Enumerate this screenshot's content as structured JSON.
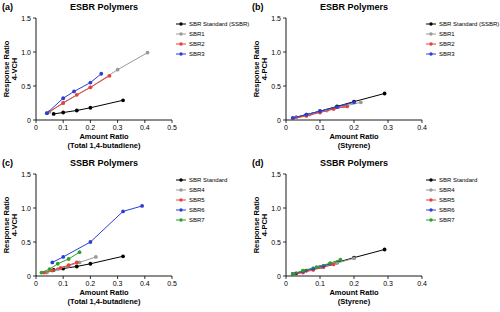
{
  "chart_data": [
    {
      "type": "line",
      "panel_label": "(a)",
      "title": "ESBR Polymers",
      "xlabel": [
        "Amount Ratio",
        "(Total 1,4-butadiene)"
      ],
      "ylabel": [
        "Response Ratio",
        "4-VCH"
      ],
      "xlim": [
        0,
        0.5
      ],
      "ylim": [
        0,
        1.5
      ],
      "xticks": [
        0,
        0.1,
        0.2,
        0.3,
        0.4,
        0.5
      ],
      "yticks": [
        0,
        0.5,
        {
          "value": 1,
          "label": "1.0"
        },
        1.5
      ],
      "grid": false,
      "legend": "right",
      "marker": "circle",
      "series": [
        {
          "name": "SBR Standard (SSBR)",
          "color": "#000000",
          "x": [
            0.065,
            0.1,
            0.15,
            0.2,
            0.32
          ],
          "values": [
            0.09,
            0.11,
            0.14,
            0.18,
            0.29
          ]
        },
        {
          "name": "SBR1",
          "color": "#9a9a9a",
          "x": [
            0.05,
            0.1,
            0.2,
            0.3,
            0.41
          ],
          "values": [
            0.12,
            0.25,
            0.48,
            0.74,
            0.99
          ]
        },
        {
          "name": "SBR2",
          "color": "#e8413a",
          "x": [
            0.04,
            0.1,
            0.15,
            0.2,
            0.27
          ],
          "values": [
            0.1,
            0.25,
            0.37,
            0.48,
            0.65
          ]
        },
        {
          "name": "SBR3",
          "color": "#2b3fd6",
          "x": [
            0.04,
            0.1,
            0.14,
            0.2,
            0.24
          ],
          "values": [
            0.1,
            0.32,
            0.42,
            0.55,
            0.68
          ]
        }
      ]
    },
    {
      "type": "line",
      "panel_label": "(b)",
      "title": "ESBR Polymers",
      "xlabel": [
        "Amount Ratio",
        "(Styrene)"
      ],
      "ylabel": [
        "Response Ratio",
        "4-PCH"
      ],
      "xlim": [
        0,
        0.4
      ],
      "ylim": [
        0,
        1.5
      ],
      "xticks": [
        0,
        0.1,
        0.2,
        0.3,
        0.4
      ],
      "yticks": [
        0,
        0.5,
        {
          "value": 1,
          "label": "1.0"
        },
        1.5
      ],
      "grid": false,
      "legend": "right",
      "marker": "circle",
      "series": [
        {
          "name": "SBR Standard (SSBR)",
          "color": "#000000",
          "x": [
            0.03,
            0.06,
            0.1,
            0.15,
            0.2,
            0.29
          ],
          "values": [
            0.04,
            0.08,
            0.13,
            0.2,
            0.27,
            0.39
          ]
        },
        {
          "name": "SBR1",
          "color": "#9a9a9a",
          "x": [
            0.03,
            0.07,
            0.12,
            0.17,
            0.22
          ],
          "values": [
            0.03,
            0.08,
            0.14,
            0.2,
            0.26
          ]
        },
        {
          "name": "SBR2",
          "color": "#e8413a",
          "x": [
            0.02,
            0.06,
            0.1,
            0.14,
            0.18
          ],
          "values": [
            0.02,
            0.06,
            0.11,
            0.16,
            0.2
          ]
        },
        {
          "name": "SBR3",
          "color": "#2b3fd6",
          "x": [
            0.02,
            0.06,
            0.1,
            0.15,
            0.2
          ],
          "values": [
            0.03,
            0.08,
            0.13,
            0.19,
            0.26
          ]
        }
      ]
    },
    {
      "type": "line",
      "panel_label": "(c)",
      "title": "SSBR Polymers",
      "xlabel": [
        "Amount Ratio",
        "(Total 1,4-butadiene)"
      ],
      "ylabel": [
        "Response Ratio",
        "4-VCH"
      ],
      "xlim": [
        0,
        0.5
      ],
      "ylim": [
        0,
        1.5
      ],
      "xticks": [
        0,
        0.1,
        0.2,
        0.3,
        0.4,
        0.5
      ],
      "yticks": [
        0,
        0.5,
        {
          "value": 1,
          "label": "1.0"
        },
        1.5
      ],
      "grid": false,
      "legend": "right",
      "marker": "circle",
      "series": [
        {
          "name": "SBR Standard",
          "color": "#000000",
          "x": [
            0.065,
            0.1,
            0.15,
            0.2,
            0.32
          ],
          "values": [
            0.09,
            0.11,
            0.14,
            0.18,
            0.29
          ]
        },
        {
          "name": "SBR4",
          "color": "#9a9a9a",
          "x": [
            0.04,
            0.08,
            0.12,
            0.16,
            0.22
          ],
          "values": [
            0.05,
            0.1,
            0.15,
            0.2,
            0.28
          ]
        },
        {
          "name": "SBR5",
          "color": "#e8413a",
          "x": [
            0.03,
            0.06,
            0.09,
            0.12,
            0.15
          ],
          "values": [
            0.05,
            0.08,
            0.12,
            0.16,
            0.2
          ]
        },
        {
          "name": "SBR6",
          "color": "#2b3fd6",
          "x": [
            0.06,
            0.1,
            0.2,
            0.32,
            0.39
          ],
          "values": [
            0.2,
            0.28,
            0.5,
            0.95,
            1.03
          ]
        },
        {
          "name": "SBR7",
          "color": "#2ca02c",
          "x": [
            0.02,
            0.05,
            0.08,
            0.12,
            0.16
          ],
          "values": [
            0.05,
            0.1,
            0.18,
            0.25,
            0.35
          ]
        }
      ]
    },
    {
      "type": "line",
      "panel_label": "(d)",
      "title": "SSBR Polymers",
      "xlabel": [
        "Amount Ratio",
        "(Styrene)"
      ],
      "ylabel": [
        "Response Ratio",
        "4-PCH"
      ],
      "xlim": [
        0,
        0.4
      ],
      "ylim": [
        0,
        1.5
      ],
      "xticks": [
        0,
        0.1,
        0.2,
        0.3,
        0.4
      ],
      "yticks": [
        0,
        0.5,
        {
          "value": 1,
          "label": "1.0"
        },
        1.5
      ],
      "grid": false,
      "legend": "right",
      "marker": "circle",
      "series": [
        {
          "name": "SBR Standard",
          "color": "#000000",
          "x": [
            0.03,
            0.06,
            0.1,
            0.15,
            0.2,
            0.29
          ],
          "values": [
            0.04,
            0.08,
            0.13,
            0.2,
            0.27,
            0.39
          ]
        },
        {
          "name": "SBR4",
          "color": "#9a9a9a",
          "x": [
            0.02,
            0.05,
            0.1,
            0.15,
            0.2
          ],
          "values": [
            0.03,
            0.07,
            0.13,
            0.19,
            0.26
          ]
        },
        {
          "name": "SBR5",
          "color": "#e8413a",
          "x": [
            0.02,
            0.05,
            0.08,
            0.11,
            0.14
          ],
          "values": [
            0.02,
            0.05,
            0.09,
            0.13,
            0.17
          ]
        },
        {
          "name": "SBR6",
          "color": "#2b3fd6",
          "x": [
            0.02,
            0.05,
            0.08,
            0.11,
            0.13
          ],
          "values": [
            0.03,
            0.07,
            0.11,
            0.15,
            0.18
          ]
        },
        {
          "name": "SBR7",
          "color": "#2ca02c",
          "x": [
            0.02,
            0.05,
            0.09,
            0.13,
            0.16
          ],
          "values": [
            0.03,
            0.08,
            0.13,
            0.19,
            0.24
          ]
        }
      ]
    }
  ]
}
